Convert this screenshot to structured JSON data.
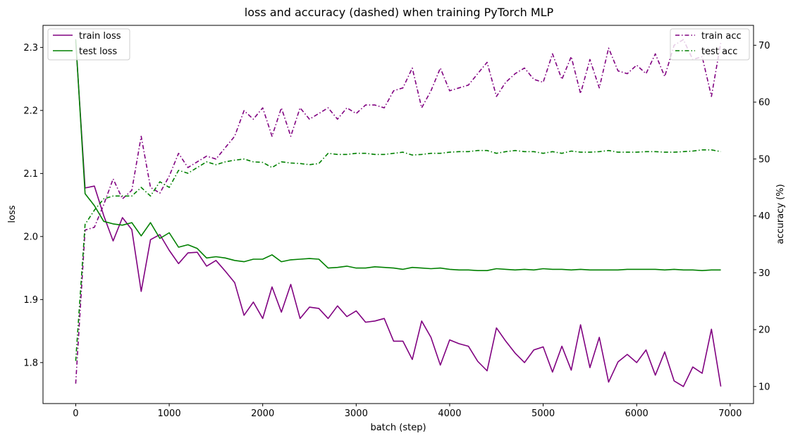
{
  "chart_data": {
    "type": "line",
    "title": "loss and accuracy (dashed) when training PyTorch MLP",
    "xlabel": "batch (step)",
    "ylabel_left": "loss",
    "ylabel_right": "accuracy (%)",
    "xlim": [
      -350,
      7250
    ],
    "ylim_left": [
      1.735,
      2.335
    ],
    "ylim_right": [
      7,
      73.5
    ],
    "x_ticks": [
      0,
      1000,
      2000,
      3000,
      4000,
      5000,
      6000,
      7000
    ],
    "y_left_ticks": [
      1.8,
      1.9,
      2.0,
      2.1,
      2.2,
      2.3
    ],
    "y_right_ticks": [
      10,
      20,
      30,
      40,
      50,
      60,
      70
    ],
    "grid": false,
    "legend_left_placement": "top-left",
    "legend_right_placement": "top-right",
    "x": [
      0,
      100,
      200,
      300,
      400,
      500,
      600,
      700,
      800,
      900,
      1000,
      1100,
      1200,
      1300,
      1400,
      1500,
      1600,
      1700,
      1800,
      1900,
      2000,
      2100,
      2200,
      2300,
      2400,
      2500,
      2600,
      2700,
      2800,
      2900,
      3000,
      3100,
      3200,
      3300,
      3400,
      3500,
      3600,
      3700,
      3800,
      3900,
      4000,
      4100,
      4200,
      4300,
      4400,
      4500,
      4600,
      4700,
      4800,
      4900,
      5000,
      5100,
      5200,
      5300,
      5400,
      5500,
      5600,
      5700,
      5800,
      5900,
      6000,
      6100,
      6200,
      6300,
      6400,
      6500,
      6600,
      6700,
      6800,
      6900
    ],
    "series": [
      {
        "name": "train loss",
        "axis": "left",
        "color": "#800080",
        "style": "solid",
        "values": [
          2.31,
          2.077,
          2.08,
          2.033,
          1.993,
          2.03,
          2.011,
          1.913,
          1.995,
          2.003,
          1.978,
          1.957,
          1.974,
          1.975,
          1.953,
          1.962,
          1.945,
          1.927,
          1.875,
          1.896,
          1.87,
          1.92,
          1.88,
          1.924,
          1.87,
          1.888,
          1.886,
          1.87,
          1.89,
          1.873,
          1.882,
          1.864,
          1.866,
          1.87,
          1.834,
          1.834,
          1.805,
          1.866,
          1.84,
          1.796,
          1.836,
          1.83,
          1.826,
          1.802,
          1.787,
          1.855,
          1.834,
          1.815,
          1.8,
          1.82,
          1.825,
          1.785,
          1.826,
          1.788,
          1.86,
          1.792,
          1.84,
          1.769,
          1.801,
          1.813,
          1.8,
          1.82,
          1.78,
          1.817,
          1.771,
          1.762,
          1.793,
          1.783,
          1.853,
          1.762
        ]
      },
      {
        "name": "test loss",
        "axis": "left",
        "color": "#008000",
        "style": "solid",
        "values": [
          2.313,
          2.068,
          2.049,
          2.024,
          2.02,
          2.018,
          2.022,
          2.001,
          2.022,
          1.997,
          2.006,
          1.983,
          1.987,
          1.981,
          1.966,
          1.968,
          1.966,
          1.962,
          1.96,
          1.964,
          1.964,
          1.971,
          1.96,
          1.963,
          1.964,
          1.965,
          1.964,
          1.95,
          1.951,
          1.953,
          1.95,
          1.95,
          1.952,
          1.951,
          1.95,
          1.948,
          1.951,
          1.95,
          1.949,
          1.95,
          1.948,
          1.947,
          1.947,
          1.946,
          1.946,
          1.949,
          1.948,
          1.947,
          1.948,
          1.947,
          1.949,
          1.948,
          1.948,
          1.947,
          1.948,
          1.947,
          1.947,
          1.947,
          1.947,
          1.948,
          1.948,
          1.948,
          1.948,
          1.947,
          1.948,
          1.947,
          1.947,
          1.946,
          1.947,
          1.947
        ]
      },
      {
        "name": "train acc",
        "axis": "right",
        "color": "#800080",
        "style": "dashdot",
        "values": [
          10.5,
          37.5,
          38.0,
          42.0,
          46.5,
          43.0,
          44.5,
          54.0,
          45.0,
          44.0,
          47.0,
          51.0,
          48.5,
          49.5,
          50.5,
          50.0,
          52.0,
          54.0,
          58.5,
          57.0,
          59.0,
          54.0,
          59.0,
          54.0,
          59.0,
          57.0,
          58.0,
          59.0,
          57.0,
          59.0,
          58.0,
          59.5,
          59.5,
          59.0,
          62.0,
          62.5,
          66.0,
          59.0,
          62.0,
          66.0,
          62.0,
          62.5,
          63.0,
          65.0,
          67.0,
          61.0,
          63.5,
          65.0,
          66.0,
          64.0,
          63.5,
          68.5,
          64.0,
          68.0,
          61.5,
          67.5,
          62.5,
          69.5,
          65.5,
          65.0,
          66.5,
          65.0,
          68.5,
          64.5,
          70.0,
          71.0,
          67.5,
          68.0,
          61.0,
          70.5
        ]
      },
      {
        "name": "test acc",
        "axis": "right",
        "color": "#008000",
        "style": "dashdot",
        "values": [
          14.5,
          38.5,
          41.0,
          43.0,
          43.5,
          43.5,
          43.5,
          45.0,
          43.5,
          46.0,
          45.0,
          48.0,
          47.5,
          48.5,
          49.5,
          49.0,
          49.5,
          49.8,
          50.0,
          49.5,
          49.4,
          48.5,
          49.5,
          49.3,
          49.2,
          49.0,
          49.2,
          51.0,
          50.8,
          50.8,
          51.0,
          51.0,
          50.8,
          50.8,
          51.0,
          51.2,
          50.7,
          50.8,
          51.0,
          51.0,
          51.2,
          51.3,
          51.3,
          51.5,
          51.5,
          51.0,
          51.3,
          51.5,
          51.3,
          51.3,
          51.0,
          51.3,
          51.0,
          51.4,
          51.2,
          51.2,
          51.3,
          51.5,
          51.2,
          51.2,
          51.2,
          51.3,
          51.3,
          51.2,
          51.2,
          51.3,
          51.4,
          51.6,
          51.6,
          51.3
        ]
      }
    ]
  }
}
